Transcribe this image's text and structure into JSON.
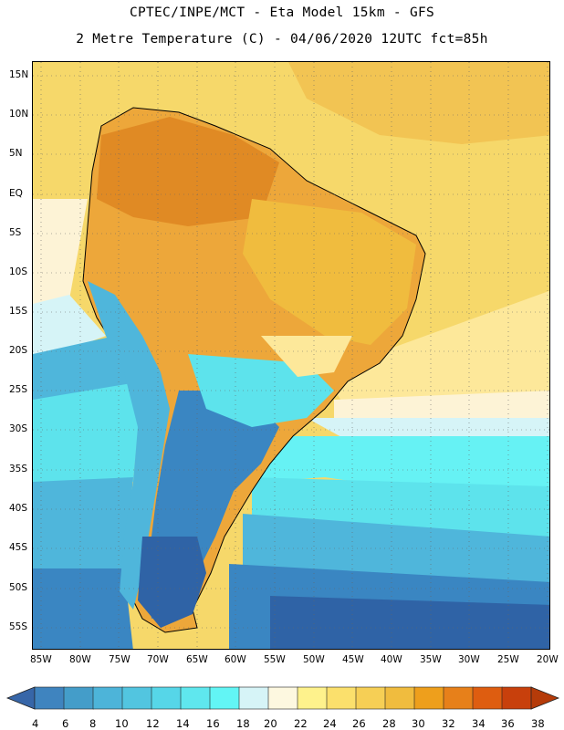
{
  "header": {
    "line1": "CPTEC/INPE/MCT -  Eta Model 15km - GFS",
    "line2": "2 Metre Temperature (C) - 04/06/2020 12UTC fct=85h"
  },
  "map": {
    "region": "South America",
    "lat_ticks": [
      "15N",
      "10N",
      "5N",
      "EQ",
      "5S",
      "10S",
      "15S",
      "20S",
      "25S",
      "30S",
      "35S",
      "40S",
      "45S",
      "50S",
      "55S"
    ],
    "lon_ticks": [
      "85W",
      "80W",
      "75W",
      "70W",
      "65W",
      "60W",
      "55W",
      "50W",
      "45W",
      "40W",
      "35W",
      "30W",
      "25W",
      "20W"
    ]
  },
  "colorbar": {
    "labels": [
      "4",
      "6",
      "8",
      "10",
      "12",
      "14",
      "16",
      "18",
      "20",
      "22",
      "24",
      "26",
      "28",
      "30",
      "32",
      "34",
      "36",
      "38"
    ],
    "colors": [
      "#3766a8",
      "#3f84bf",
      "#449dc9",
      "#4db4d9",
      "#52c5e0",
      "#56d6e8",
      "#5fe7ee",
      "#62f5f5",
      "#d6f4f7",
      "#fdf8e0",
      "#fef28c",
      "#fbe06c",
      "#f6cf55",
      "#f0bc3e",
      "#ee9f1c",
      "#e7801a",
      "#de5d10",
      "#c8400c"
    ],
    "left_arrow_color": "#3766a8",
    "right_arrow_color": "#b53b09"
  },
  "colors": {
    "deep_blue": "#2f63a6",
    "mid_blue": "#3a86c2",
    "light_blue": "#4fb6db",
    "cyan": "#5de3ec",
    "bright_cyan": "#66f2f4",
    "pale_cyan": "#d6f4f7",
    "cream": "#fdf3d6",
    "pale_yellow": "#fde89a",
    "yellow": "#f6d86a",
    "gold": "#f2c453",
    "orange": "#eda73a",
    "dark_orange": "#e08a24"
  }
}
